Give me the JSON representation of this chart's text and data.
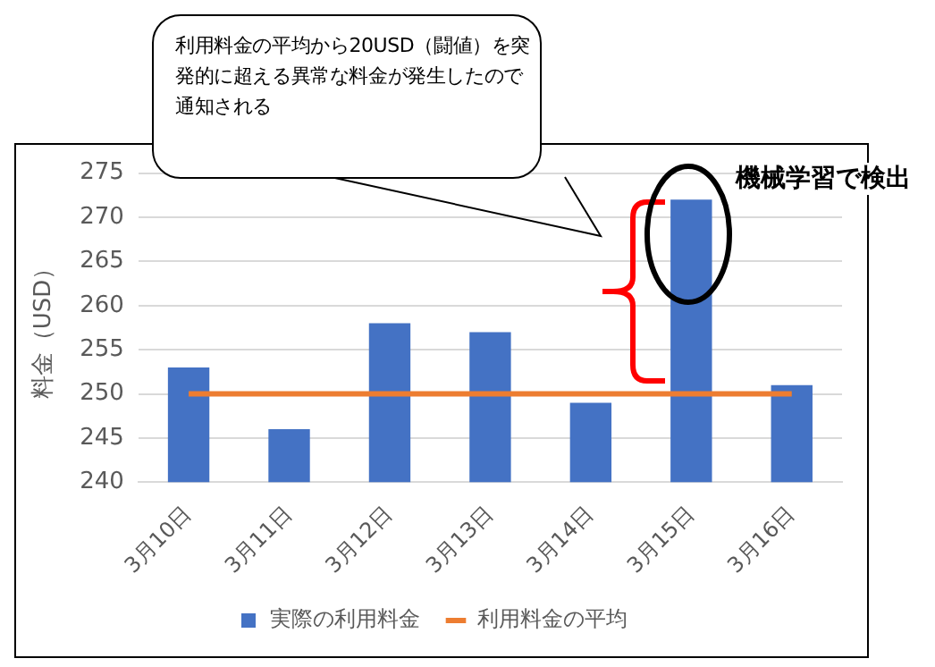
{
  "chart_data": {
    "type": "bar",
    "ylabel": "料金（USD）",
    "categories": [
      "3月10日",
      "3月11日",
      "3月12日",
      "3月13日",
      "3月14日",
      "3月15日",
      "3月16日"
    ],
    "series": [
      {
        "name": "実際の利用料金",
        "color": "#4472c4",
        "values": [
          253,
          246,
          258,
          257,
          249,
          272,
          251
        ]
      },
      {
        "name": "利用料金の平均",
        "type": "line",
        "color": "#ed7d31",
        "values": [
          250,
          250,
          250,
          250,
          250,
          250,
          250
        ]
      }
    ],
    "ylim": [
      240,
      275
    ],
    "yticks": [
      240,
      245,
      250,
      255,
      260,
      265,
      270,
      275
    ],
    "grid": "y",
    "legend": "bottom",
    "marker": "none",
    "annotations": [
      "利用料金の平均から20USD（闘値）を突発的に超える異常な料金が発生したので通知される",
      {
        "text": "機械学習で検出",
        "x": "3月15日",
        "y": 272
      }
    ]
  }
}
